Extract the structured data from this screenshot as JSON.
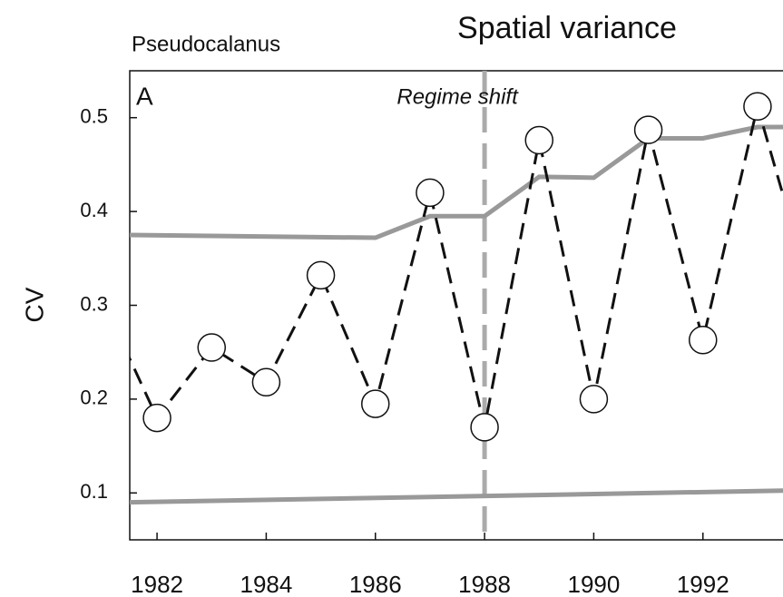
{
  "chart_data": {
    "type": "line",
    "title": "Spatial variance",
    "subtitle": "Pseudocalanus",
    "ylabel": "CV",
    "panel_label": "A",
    "annotations": [
      {
        "text": "Regime shift",
        "x": 1988
      }
    ],
    "xlim": [
      1981.5,
      1993.5
    ],
    "ylim": [
      0.05,
      0.55
    ],
    "xticks": [
      1982,
      1984,
      1986,
      1988,
      1990,
      1992
    ],
    "yticks": [
      0.1,
      0.2,
      0.3,
      0.4,
      0.5
    ],
    "series": [
      {
        "color": "#999999",
        "style": "solid",
        "markers": false,
        "x": [
          1981.5,
          1986,
          1987,
          1988,
          1989,
          1990,
          1991,
          1992,
          1993,
          1994
        ],
        "values": [
          0.375,
          0.372,
          0.395,
          0.395,
          0.437,
          0.436,
          0.478,
          0.478,
          0.49,
          0.49
        ]
      },
      {
        "color": "#999999",
        "style": "solid",
        "markers": false,
        "x": [
          1981.5,
          1994
        ],
        "values": [
          0.09,
          0.103
        ]
      },
      {
        "color": "#111111",
        "style": "dashed",
        "markers": true,
        "x": [
          1981,
          1982,
          1983,
          1984,
          1985,
          1986,
          1987,
          1988,
          1989,
          1990,
          1991,
          1992,
          1993,
          1994
        ],
        "values": [
          0.306,
          0.18,
          0.255,
          0.218,
          0.332,
          0.195,
          0.42,
          0.17,
          0.476,
          0.2,
          0.487,
          0.263,
          0.512,
          0.31
        ]
      }
    ]
  }
}
